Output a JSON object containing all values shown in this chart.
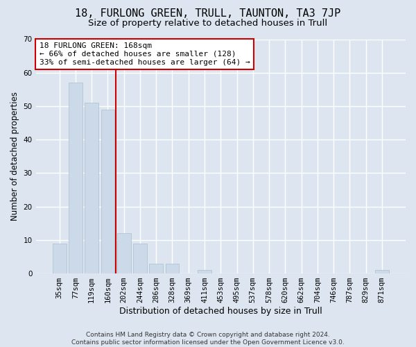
{
  "title": "18, FURLONG GREEN, TRULL, TAUNTON, TA3 7JP",
  "subtitle": "Size of property relative to detached houses in Trull",
  "xlabel": "Distribution of detached houses by size in Trull",
  "ylabel": "Number of detached properties",
  "bar_color": "#ccd9e8",
  "bar_edge_color": "#a8bece",
  "background_color": "#dde6f0",
  "grid_color": "#ffffff",
  "categories": [
    "35sqm",
    "77sqm",
    "119sqm",
    "160sqm",
    "202sqm",
    "244sqm",
    "286sqm",
    "328sqm",
    "369sqm",
    "411sqm",
    "453sqm",
    "495sqm",
    "537sqm",
    "578sqm",
    "620sqm",
    "662sqm",
    "704sqm",
    "746sqm",
    "787sqm",
    "829sqm",
    "871sqm"
  ],
  "values": [
    9,
    57,
    51,
    49,
    12,
    9,
    3,
    3,
    0,
    1,
    0,
    0,
    0,
    0,
    0,
    0,
    0,
    0,
    0,
    0,
    1
  ],
  "ylim": [
    0,
    70
  ],
  "yticks": [
    0,
    10,
    20,
    30,
    40,
    50,
    60,
    70
  ],
  "vline_x": 3.5,
  "vline_color": "#cc0000",
  "annotation_text": "18 FURLONG GREEN: 168sqm\n← 66% of detached houses are smaller (128)\n33% of semi-detached houses are larger (64) →",
  "annotation_box_color": "#ffffff",
  "annotation_box_edge_color": "#cc0000",
  "footer_text": "Contains HM Land Registry data © Crown copyright and database right 2024.\nContains public sector information licensed under the Open Government Licence v3.0.",
  "title_fontsize": 11,
  "subtitle_fontsize": 9.5,
  "xlabel_fontsize": 9,
  "ylabel_fontsize": 8.5,
  "tick_fontsize": 7.5,
  "annotation_fontsize": 8,
  "footer_fontsize": 6.5
}
